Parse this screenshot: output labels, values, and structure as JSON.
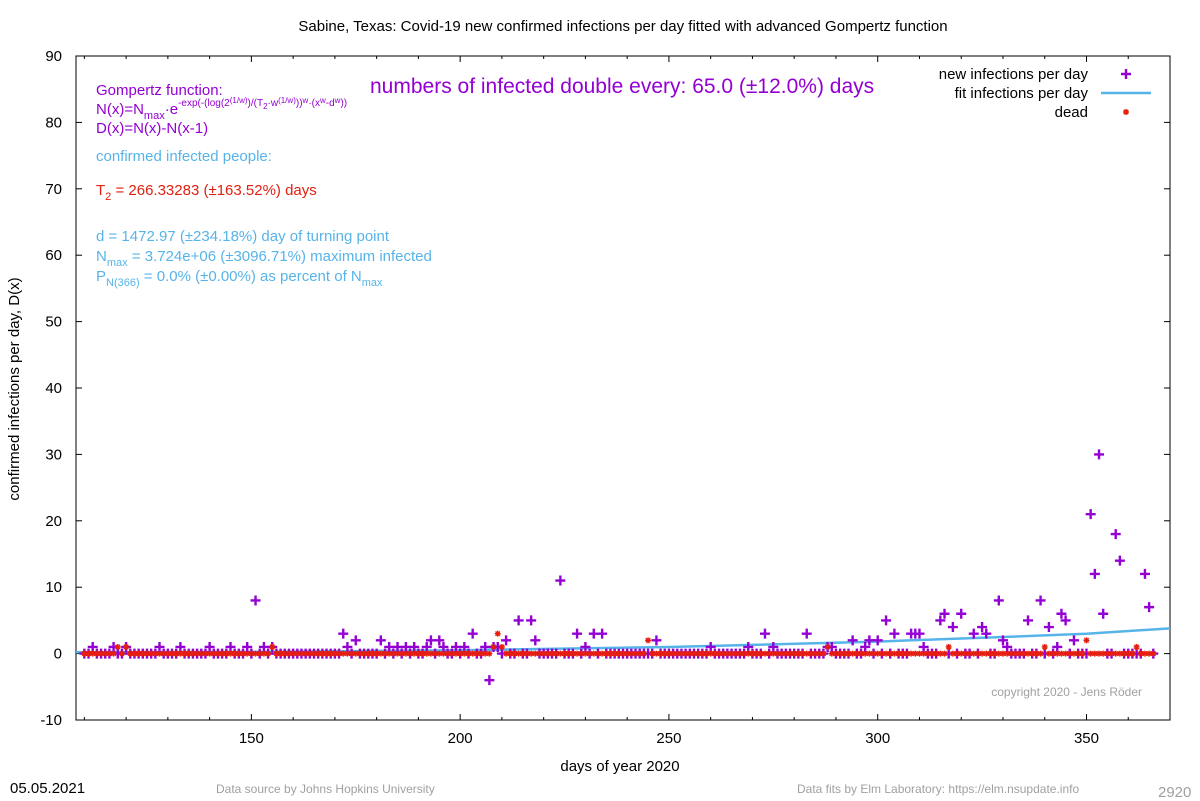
{
  "chart_data": {
    "type": "scatter",
    "title": "Sabine,  Texas: Covid-19 new confirmed infections per day fitted with advanced Gompertz function",
    "xlabel": "days of year 2020",
    "ylabel": "confirmed infections per day, D(x)",
    "xlim": [
      108,
      370
    ],
    "ylim": [
      -10,
      90
    ],
    "xticks": [
      150,
      200,
      250,
      300,
      350
    ],
    "yticks": [
      -10,
      0,
      10,
      20,
      30,
      40,
      50,
      60,
      70,
      80,
      90
    ],
    "grid": false,
    "legend_position": "top-right",
    "colors": {
      "infections": "#9400d3",
      "fit": "#56b4e9",
      "dead": "#e51e10",
      "info_red": "#e02010",
      "copyright": "#a0a0a0"
    },
    "legend": [
      {
        "label": "new infections per day",
        "series": "infections"
      },
      {
        "label": "fit infections per day",
        "series": "fit"
      },
      {
        "label": "dead",
        "series": "dead"
      }
    ],
    "annotations": {
      "doubling": "numbers of infected double every: 65.0 (±12.0%) days",
      "gompertz_heading": "Gompertz function:",
      "nx_N": "N(x)=N",
      "nx_max": "max",
      "nx_e": "·e",
      "nx_exp": "-exp(-(log(2",
      "nx_w1": "(1/w)",
      "nx_mid": ")/(T",
      "nx_2": "2",
      "nx_w": "·w",
      "nx_w2": "(1/w)",
      "nx_close": "))",
      "nx_pw": "w",
      "nx_xw": "·(x",
      "nx_xwp": "w",
      "nx_dw": "-d",
      "nx_dwp": "w",
      "nx_end": "))",
      "dx": "D(x)=N(x)-N(x-1)",
      "confirmed": "confirmed infected people:",
      "t2_T": "T",
      "t2_sub": "2",
      "t2_rest": " = 266.33283 (±163.52%) days",
      "d_line": "d = 1472.97 (±234.18%) day of turning point",
      "nmax_N": "N",
      "nmax_sub": "max",
      "nmax_rest": " = 3.724e+06 (±3096.71%) maximum infected",
      "p_P": "P",
      "p_sub": "N(366)",
      "p_rest": " = 0.0% (±0.00%) as percent of N",
      "p_sub2": "max",
      "copyright": "copyright 2020 - Jens Röder"
    },
    "series": [
      {
        "name": "new infections per day",
        "type": "scatter",
        "points": [
          [
            110,
            0
          ],
          [
            111,
            0
          ],
          [
            112,
            1
          ],
          [
            113,
            0
          ],
          [
            114,
            0
          ],
          [
            115,
            0
          ],
          [
            116,
            0
          ],
          [
            117,
            1
          ],
          [
            118,
            0
          ],
          [
            119,
            0
          ],
          [
            120,
            1
          ],
          [
            121,
            0
          ],
          [
            122,
            0
          ],
          [
            123,
            0
          ],
          [
            124,
            0
          ],
          [
            125,
            0
          ],
          [
            126,
            0
          ],
          [
            127,
            0
          ],
          [
            128,
            1
          ],
          [
            129,
            0
          ],
          [
            130,
            0
          ],
          [
            131,
            0
          ],
          [
            132,
            0
          ],
          [
            133,
            1
          ],
          [
            134,
            0
          ],
          [
            135,
            0
          ],
          [
            136,
            0
          ],
          [
            137,
            0
          ],
          [
            138,
            0
          ],
          [
            139,
            0
          ],
          [
            140,
            1
          ],
          [
            141,
            0
          ],
          [
            142,
            0
          ],
          [
            143,
            0
          ],
          [
            144,
            0
          ],
          [
            145,
            1
          ],
          [
            146,
            0
          ],
          [
            147,
            0
          ],
          [
            148,
            0
          ],
          [
            149,
            1
          ],
          [
            150,
            0
          ],
          [
            151,
            8
          ],
          [
            152,
            0
          ],
          [
            153,
            1
          ],
          [
            154,
            0
          ],
          [
            155,
            1
          ],
          [
            156,
            0
          ],
          [
            157,
            0
          ],
          [
            158,
            0
          ],
          [
            159,
            0
          ],
          [
            160,
            0
          ],
          [
            161,
            0
          ],
          [
            162,
            0
          ],
          [
            163,
            0
          ],
          [
            164,
            0
          ],
          [
            165,
            0
          ],
          [
            166,
            0
          ],
          [
            167,
            0
          ],
          [
            168,
            0
          ],
          [
            169,
            0
          ],
          [
            170,
            0
          ],
          [
            171,
            0
          ],
          [
            172,
            3
          ],
          [
            173,
            1
          ],
          [
            174,
            0
          ],
          [
            175,
            2
          ],
          [
            176,
            0
          ],
          [
            177,
            0
          ],
          [
            178,
            0
          ],
          [
            179,
            0
          ],
          [
            180,
            0
          ],
          [
            181,
            2
          ],
          [
            182,
            0
          ],
          [
            183,
            1
          ],
          [
            184,
            0
          ],
          [
            185,
            1
          ],
          [
            186,
            0
          ],
          [
            187,
            1
          ],
          [
            188,
            0
          ],
          [
            189,
            1
          ],
          [
            190,
            0
          ],
          [
            191,
            0
          ],
          [
            192,
            1
          ],
          [
            193,
            2
          ],
          [
            194,
            0
          ],
          [
            195,
            2
          ],
          [
            196,
            1
          ],
          [
            197,
            0
          ],
          [
            198,
            0
          ],
          [
            199,
            1
          ],
          [
            200,
            0
          ],
          [
            201,
            1
          ],
          [
            202,
            0
          ],
          [
            203,
            3
          ],
          [
            204,
            0
          ],
          [
            205,
            0
          ],
          [
            206,
            1
          ],
          [
            207,
            -4
          ],
          [
            208,
            1
          ],
          [
            209,
            1
          ],
          [
            210,
            0
          ],
          [
            211,
            2
          ],
          [
            212,
            0
          ],
          [
            213,
            0
          ],
          [
            214,
            5
          ],
          [
            215,
            0
          ],
          [
            216,
            0
          ],
          [
            217,
            5
          ],
          [
            218,
            2
          ],
          [
            219,
            0
          ],
          [
            220,
            0
          ],
          [
            221,
            0
          ],
          [
            222,
            0
          ],
          [
            223,
            0
          ],
          [
            224,
            11
          ],
          [
            225,
            0
          ],
          [
            226,
            0
          ],
          [
            227,
            0
          ],
          [
            228,
            3
          ],
          [
            229,
            0
          ],
          [
            230,
            1
          ],
          [
            231,
            0
          ],
          [
            232,
            3
          ],
          [
            233,
            0
          ],
          [
            234,
            3
          ],
          [
            235,
            0
          ],
          [
            236,
            0
          ],
          [
            237,
            0
          ],
          [
            238,
            0
          ],
          [
            239,
            0
          ],
          [
            240,
            0
          ],
          [
            241,
            0
          ],
          [
            242,
            0
          ],
          [
            243,
            0
          ],
          [
            244,
            0
          ],
          [
            245,
            0
          ],
          [
            246,
            0
          ],
          [
            247,
            2
          ],
          [
            248,
            0
          ],
          [
            249,
            0
          ],
          [
            250,
            0
          ],
          [
            251,
            0
          ],
          [
            252,
            0
          ],
          [
            253,
            0
          ],
          [
            254,
            0
          ],
          [
            255,
            0
          ],
          [
            256,
            0
          ],
          [
            257,
            0
          ],
          [
            258,
            0
          ],
          [
            259,
            0
          ],
          [
            260,
            1
          ],
          [
            261,
            0
          ],
          [
            262,
            0
          ],
          [
            263,
            0
          ],
          [
            264,
            0
          ],
          [
            265,
            0
          ],
          [
            266,
            0
          ],
          [
            267,
            0
          ],
          [
            268,
            0
          ],
          [
            269,
            1
          ],
          [
            270,
            0
          ],
          [
            271,
            0
          ],
          [
            272,
            0
          ],
          [
            273,
            3
          ],
          [
            274,
            0
          ],
          [
            275,
            1
          ],
          [
            276,
            0
          ],
          [
            277,
            0
          ],
          [
            278,
            0
          ],
          [
            279,
            0
          ],
          [
            280,
            0
          ],
          [
            281,
            0
          ],
          [
            282,
            0
          ],
          [
            283,
            3
          ],
          [
            284,
            0
          ],
          [
            285,
            0
          ],
          [
            286,
            0
          ],
          [
            287,
            0
          ],
          [
            288,
            1
          ],
          [
            289,
            1
          ],
          [
            290,
            0
          ],
          [
            291,
            0
          ],
          [
            292,
            0
          ],
          [
            293,
            0
          ],
          [
            294,
            2
          ],
          [
            295,
            0
          ],
          [
            296,
            0
          ],
          [
            297,
            1
          ],
          [
            298,
            2
          ],
          [
            299,
            0
          ],
          [
            300,
            2
          ],
          [
            301,
            0
          ],
          [
            302,
            5
          ],
          [
            303,
            0
          ],
          [
            304,
            3
          ],
          [
            305,
            0
          ],
          [
            306,
            0
          ],
          [
            307,
            0
          ],
          [
            308,
            3
          ],
          [
            309,
            3
          ],
          [
            310,
            3
          ],
          [
            311,
            1
          ],
          [
            312,
            0
          ],
          [
            313,
            0
          ],
          [
            314,
            0
          ],
          [
            315,
            5
          ],
          [
            316,
            6
          ],
          [
            317,
            0
          ],
          [
            318,
            4
          ],
          [
            319,
            0
          ],
          [
            320,
            6
          ],
          [
            321,
            0
          ],
          [
            322,
            0
          ],
          [
            323,
            3
          ],
          [
            324,
            0
          ],
          [
            325,
            4
          ],
          [
            326,
            3
          ],
          [
            327,
            0
          ],
          [
            328,
            0
          ],
          [
            329,
            8
          ],
          [
            330,
            2
          ],
          [
            331,
            1
          ],
          [
            332,
            0
          ],
          [
            333,
            0
          ],
          [
            334,
            0
          ],
          [
            335,
            0
          ],
          [
            336,
            5
          ],
          [
            337,
            0
          ],
          [
            338,
            0
          ],
          [
            339,
            8
          ],
          [
            340,
            0
          ],
          [
            341,
            4
          ],
          [
            342,
            0
          ],
          [
            343,
            1
          ],
          [
            344,
            6
          ],
          [
            345,
            5
          ],
          [
            346,
            0
          ],
          [
            347,
            2
          ],
          [
            348,
            0
          ],
          [
            349,
            0
          ],
          [
            350,
            0
          ],
          [
            351,
            21
          ],
          [
            352,
            12
          ],
          [
            353,
            30
          ],
          [
            354,
            6
          ],
          [
            355,
            0
          ],
          [
            356,
            0
          ],
          [
            357,
            18
          ],
          [
            358,
            14
          ],
          [
            359,
            0
          ],
          [
            360,
            0
          ],
          [
            361,
            0
          ],
          [
            362,
            0
          ],
          [
            363,
            0
          ],
          [
            364,
            12
          ],
          [
            365,
            7
          ],
          [
            366,
            0
          ]
        ]
      },
      {
        "name": "fit infections per day",
        "type": "line",
        "points": [
          [
            108,
            0.2
          ],
          [
            150,
            0.25
          ],
          [
            200,
            0.5
          ],
          [
            250,
            1.0
          ],
          [
            300,
            1.8
          ],
          [
            330,
            2.5
          ],
          [
            350,
            3.0
          ],
          [
            370,
            3.8
          ]
        ]
      },
      {
        "name": "dead",
        "type": "scatter",
        "points": [
          [
            118,
            1
          ],
          [
            120,
            1
          ],
          [
            155,
            1
          ],
          [
            208,
            1
          ],
          [
            209,
            3
          ],
          [
            210,
            1
          ],
          [
            245,
            2
          ],
          [
            288,
            1
          ],
          [
            317,
            1
          ],
          [
            340,
            1
          ],
          [
            350,
            2
          ],
          [
            362,
            1
          ]
        ]
      }
    ]
  },
  "footer": {
    "date": "05.05.2021",
    "source": "Data source by Johns Hopkins University",
    "fits": "Data fits by Elm Laboratory: https://elm.nsupdate.info",
    "id": "2920"
  }
}
